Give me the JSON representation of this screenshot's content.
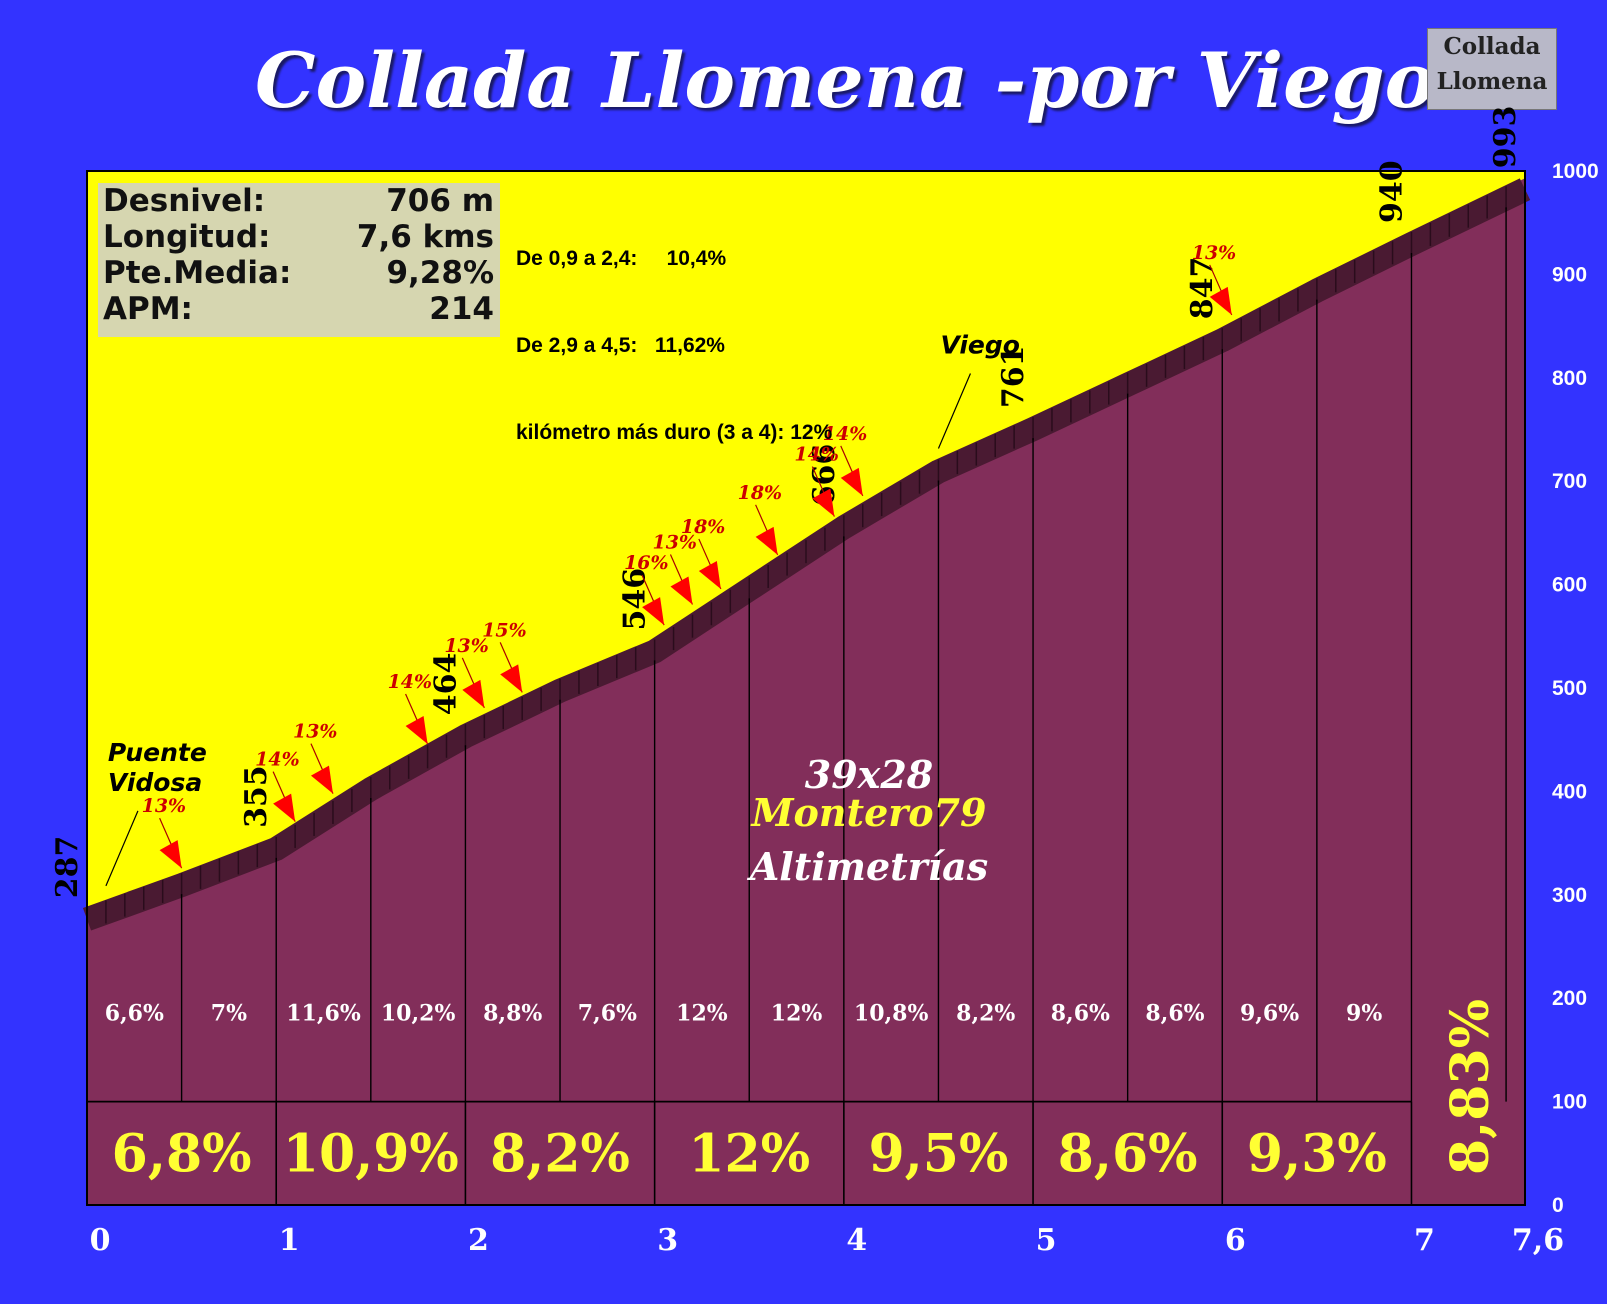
{
  "title": "Collada Llomena -por Viego-",
  "summit_label": [
    "Collada",
    "Llomena"
  ],
  "stats": [
    {
      "label": "Desnivel:",
      "value": "706 m"
    },
    {
      "label": "Longitud:",
      "value": "7,6 kms"
    },
    {
      "label": "Pte.Media:",
      "value": "9,28%"
    },
    {
      "label": "APM:",
      "value": "214"
    }
  ],
  "notes": [
    "De 0,9 a 2,4:     10,4%",
    "De 2,9 a 4,5:   11,62%",
    "kilómetro más duro (3 a 4): 12%"
  ],
  "credits": {
    "line1": "39x28",
    "line2": "Montero79",
    "line3": "Altimetrías"
  },
  "colors": {
    "background": "#3333ff",
    "sky": "#ffff00",
    "profile_fill": "#822e5a",
    "profile_band": "#4a1a32",
    "km_gradient_text": "#ffff33",
    "arrow": "#ff0000"
  },
  "chart_data": {
    "type": "area",
    "title": "Collada Llomena -por Viego-",
    "xlabel": "",
    "ylabel": "",
    "xlim": [
      0,
      7.6
    ],
    "ylim": [
      0,
      1000
    ],
    "x_ticks": [
      "0",
      "1",
      "2",
      "3",
      "4",
      "5",
      "6",
      "7",
      "7,6"
    ],
    "x_tick_values": [
      0,
      1,
      2,
      3,
      4,
      5,
      6,
      7,
      7.6
    ],
    "y_ticks": [
      "0",
      "100",
      "200",
      "300",
      "400",
      "500",
      "600",
      "700",
      "800",
      "900",
      "1000"
    ],
    "profile": [
      {
        "x": 0,
        "y": 287
      },
      {
        "x": 0.5,
        "y": 320
      },
      {
        "x": 1,
        "y": 355
      },
      {
        "x": 1.5,
        "y": 413
      },
      {
        "x": 2,
        "y": 464
      },
      {
        "x": 2.5,
        "y": 508
      },
      {
        "x": 3,
        "y": 546
      },
      {
        "x": 3.5,
        "y": 606
      },
      {
        "x": 4,
        "y": 666
      },
      {
        "x": 4.5,
        "y": 720
      },
      {
        "x": 5,
        "y": 761
      },
      {
        "x": 5.5,
        "y": 804
      },
      {
        "x": 6,
        "y": 847
      },
      {
        "x": 6.5,
        "y": 895
      },
      {
        "x": 7,
        "y": 940
      },
      {
        "x": 7.6,
        "y": 993
      }
    ],
    "elevation_labels": [
      {
        "x": 0,
        "y": 287,
        "text": "287"
      },
      {
        "x": 1,
        "y": 355,
        "text": "355"
      },
      {
        "x": 2,
        "y": 464,
        "text": "464"
      },
      {
        "x": 3,
        "y": 546,
        "text": "546"
      },
      {
        "x": 4,
        "y": 666,
        "text": "666"
      },
      {
        "x": 5,
        "y": 761,
        "text": "761"
      },
      {
        "x": 6,
        "y": 847,
        "text": "847"
      },
      {
        "x": 7,
        "y": 940,
        "text": "940"
      },
      {
        "x": 7.6,
        "y": 993,
        "text": "993"
      }
    ],
    "half_km_gradients": [
      {
        "x": 0.25,
        "text": "6,6%"
      },
      {
        "x": 0.75,
        "text": "7%"
      },
      {
        "x": 1.25,
        "text": "11,6%"
      },
      {
        "x": 1.75,
        "text": "10,2%"
      },
      {
        "x": 2.25,
        "text": "8,8%"
      },
      {
        "x": 2.75,
        "text": "7,6%"
      },
      {
        "x": 3.25,
        "text": "12%"
      },
      {
        "x": 3.75,
        "text": "12%"
      },
      {
        "x": 4.25,
        "text": "10,8%"
      },
      {
        "x": 4.75,
        "text": "8,2%"
      },
      {
        "x": 5.25,
        "text": "8,6%"
      },
      {
        "x": 5.75,
        "text": "8,6%"
      },
      {
        "x": 6.25,
        "text": "9,6%"
      },
      {
        "x": 6.75,
        "text": "9%"
      }
    ],
    "km_gradients": [
      {
        "x": 0.5,
        "text": "6,8%"
      },
      {
        "x": 1.5,
        "text": "10,9%"
      },
      {
        "x": 2.5,
        "text": "8,2%"
      },
      {
        "x": 3.5,
        "text": "12%"
      },
      {
        "x": 4.5,
        "text": "9,5%"
      },
      {
        "x": 5.5,
        "text": "8,6%"
      },
      {
        "x": 6.5,
        "text": "9,3%"
      }
    ],
    "last_segment_gradient": "8,83%",
    "ramps": [
      {
        "x": 0.5,
        "y": 320,
        "text": "13%"
      },
      {
        "x": 1.1,
        "y": 365,
        "text": "14%"
      },
      {
        "x": 1.3,
        "y": 392,
        "text": "13%"
      },
      {
        "x": 1.8,
        "y": 440,
        "text": "14%"
      },
      {
        "x": 2.1,
        "y": 475,
        "text": "13%"
      },
      {
        "x": 2.3,
        "y": 490,
        "text": "15%"
      },
      {
        "x": 3.05,
        "y": 555,
        "text": "16%"
      },
      {
        "x": 3.2,
        "y": 575,
        "text": "13%"
      },
      {
        "x": 3.35,
        "y": 590,
        "text": "18%"
      },
      {
        "x": 3.65,
        "y": 623,
        "text": "18%"
      },
      {
        "x": 3.95,
        "y": 660,
        "text": "14%"
      },
      {
        "x": 4.1,
        "y": 680,
        "text": "14%"
      },
      {
        "x": 6.05,
        "y": 855,
        "text": "13%"
      }
    ],
    "places": [
      {
        "x": 0.1,
        "y": 297,
        "text": [
          "Puente",
          "Vidosa"
        ]
      },
      {
        "x": 4.5,
        "y": 720,
        "text": [
          "Viego"
        ]
      }
    ]
  }
}
